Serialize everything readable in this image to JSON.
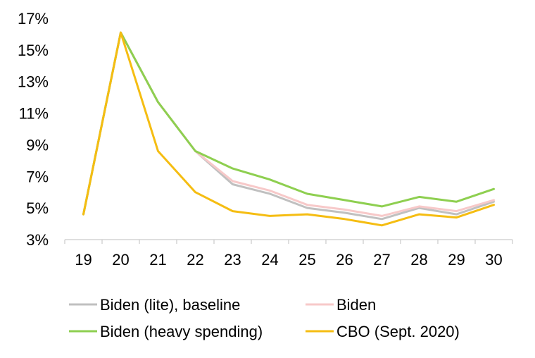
{
  "chart_data": {
    "type": "line",
    "x": [
      "19",
      "20",
      "21",
      "22",
      "23",
      "24",
      "25",
      "26",
      "27",
      "28",
      "29",
      "30"
    ],
    "ylim": [
      3,
      17
    ],
    "yticks": [
      3,
      5,
      7,
      9,
      11,
      13,
      15,
      17
    ],
    "ytick_labels": [
      "3%",
      "5%",
      "7%",
      "9%",
      "11%",
      "13%",
      "15%",
      "17%"
    ],
    "grid": false,
    "legend_position": "bottom",
    "series": [
      {
        "name": "Biden (lite), baseline",
        "color": "#c0c0c0",
        "values": [
          4.6,
          16.1,
          11.7,
          8.6,
          6.5,
          5.9,
          5.0,
          4.7,
          4.3,
          5.0,
          4.6,
          5.4
        ]
      },
      {
        "name": "Biden",
        "color": "#f7c9c9",
        "values": [
          4.6,
          16.1,
          11.7,
          8.6,
          6.7,
          6.1,
          5.2,
          4.9,
          4.5,
          5.1,
          4.8,
          5.5
        ]
      },
      {
        "name": "Biden (heavy spending)",
        "color": "#8ecf50",
        "values": [
          4.6,
          16.1,
          11.7,
          8.6,
          7.5,
          6.8,
          5.9,
          5.5,
          5.1,
          5.7,
          5.4,
          6.2
        ]
      },
      {
        "name": "CBO (Sept. 2020)",
        "color": "#f5bd12",
        "values": [
          4.6,
          16.1,
          8.6,
          6.0,
          4.8,
          4.5,
          4.6,
          4.3,
          3.9,
          4.6,
          4.4,
          5.2
        ]
      }
    ]
  }
}
